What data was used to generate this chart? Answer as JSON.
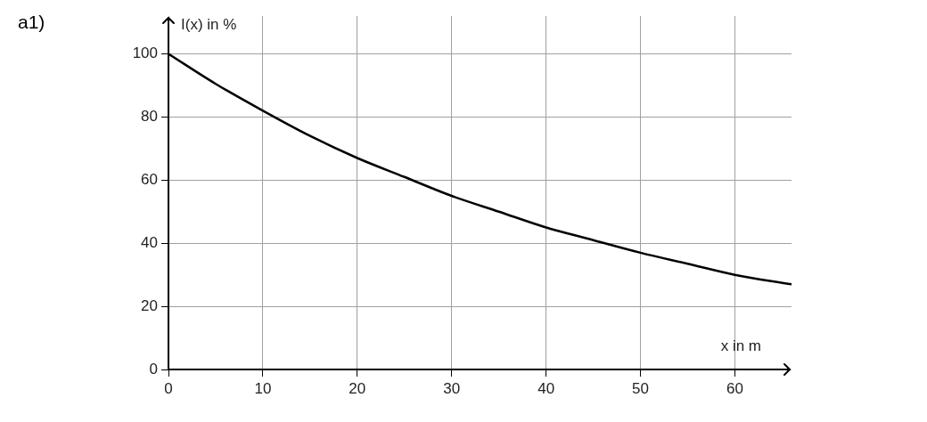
{
  "chart_data": {
    "type": "line",
    "xlabel": "x in m",
    "ylabel": "I(x) in %",
    "annotations": [
      "a1)"
    ],
    "series": [
      {
        "color": "#000000",
        "x": [
          0,
          5,
          10,
          15,
          20,
          25,
          30,
          35,
          40,
          45,
          50,
          55,
          60,
          66
        ],
        "values": [
          100,
          90.5,
          82,
          74,
          67,
          61,
          55,
          50,
          45,
          41,
          37,
          33.5,
          30,
          27
        ]
      }
    ],
    "xlim": [
      0,
      66
    ],
    "xticks": [
      0,
      10,
      20,
      30,
      40,
      50,
      60
    ],
    "ylim": [
      0,
      112
    ],
    "yticks": [
      0,
      20,
      40,
      60,
      80,
      100
    ],
    "grid": true,
    "legend": false,
    "marker": "none",
    "line_style": "solid"
  }
}
